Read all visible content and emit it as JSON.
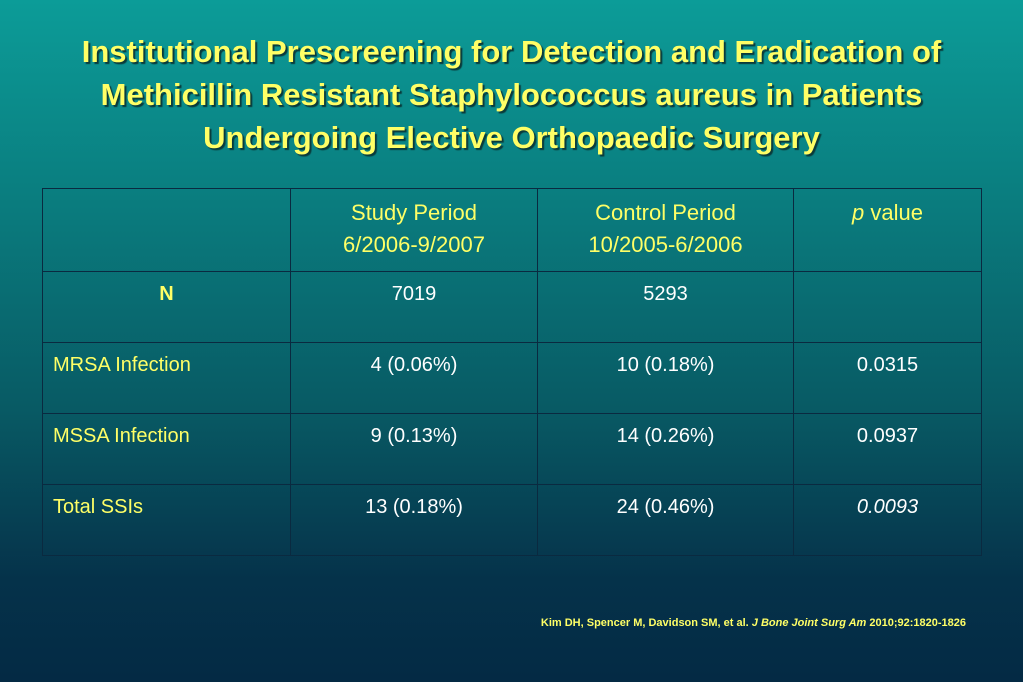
{
  "title": {
    "line1": "Institutional Prescreening for Detection and Eradication of",
    "line2": "Methicillin Resistant Staphylococcus aureus in Patients",
    "line3": "Undergoing Elective Orthopaedic Surgery"
  },
  "table": {
    "header": {
      "study_period": "Study Period",
      "study_dates": "6/2006-9/2007",
      "control_period": "Control Period",
      "control_dates": "10/2005-6/2006",
      "p_italic": "p",
      "p_rest": " value"
    },
    "rows": [
      {
        "label": "N",
        "study": "7019",
        "control": "5293",
        "p": ""
      },
      {
        "label": "MRSA Infection",
        "study": "4 (0.06%)",
        "control": "10 (0.18%)",
        "p": "0.0315"
      },
      {
        "label": "MSSA Infection",
        "study": "9 (0.13%)",
        "control": "14 (0.26%)",
        "p": "0.0937"
      },
      {
        "label": "Total SSIs",
        "study": "13 (0.18%)",
        "control": "24 (0.46%)",
        "p": "0.0093"
      }
    ]
  },
  "citation": {
    "authors": "Kim DH, Spencer M, Davidson SM, et al. ",
    "journal": "J Bone Joint Surg Am",
    "details": " 2010;92:1820-1826"
  },
  "colors": {
    "title": "#ffff66",
    "text": "#ffffff",
    "background_top": "#0c9c98",
    "background_bottom": "#042a44"
  }
}
